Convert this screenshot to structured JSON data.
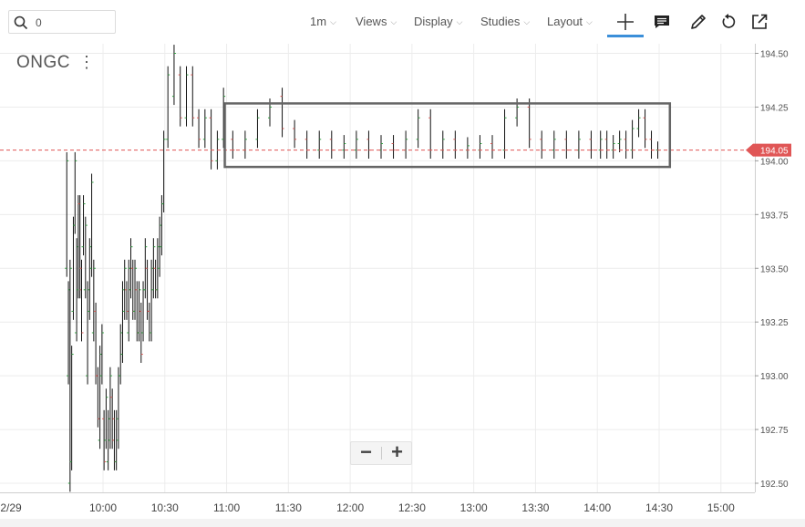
{
  "search": {
    "value": "0",
    "icon": "search-icon"
  },
  "toolbar": {
    "interval": "1m",
    "views": "Views",
    "display": "Display",
    "studies": "Studies",
    "layout": "Layout",
    "icons": [
      "crosshair-icon",
      "comment-icon",
      "pencil-icon",
      "undo-icon",
      "popout-icon"
    ]
  },
  "symbol": {
    "name": "ONGC",
    "menu": "⋮"
  },
  "zoom": {
    "out": "−",
    "in": "+"
  },
  "colors": {
    "up": "#2e9e3e",
    "down": "#d9534f",
    "bar": "#111111",
    "price_tag": "#e05656",
    "grid": "#ececec",
    "accent": "#3b8fd9"
  },
  "chart_data": {
    "type": "ohlc",
    "symbol": "ONGC",
    "x_ticks": [
      "2/29",
      "10:00",
      "10:30",
      "11:00",
      "11:30",
      "12:00",
      "12:30",
      "13:00",
      "13:30",
      "14:00",
      "14:30",
      "15:00"
    ],
    "y_ticks": [
      "194.50",
      "194.25",
      "194.00",
      "193.75",
      "193.50",
      "193.25",
      "193.00",
      "192.75",
      "192.50"
    ],
    "ylim": [
      192.48,
      194.55
    ],
    "last_price": "194.05",
    "grid": true,
    "annotation": {
      "type": "rectangle",
      "x_start": "11:00",
      "x_end": "14:33",
      "y_low": 193.98,
      "y_high": 194.25
    },
    "series": [
      {
        "x": "09:42",
        "segment": [
          [
            193.5,
            194.0
          ],
          [
            193.0,
            193.4
          ],
          [
            192.5,
            193.5
          ],
          [
            192.6,
            193.1
          ],
          [
            193.3,
            193.7
          ],
          [
            193.7,
            194.0
          ],
          [
            193.2,
            193.6
          ],
          [
            193.4,
            193.8
          ],
          [
            193.8,
            193.4
          ],
          [
            193.5,
            193.2
          ]
        ]
      },
      {
        "x": "09:50",
        "segment": [
          [
            193.6,
            193.8
          ],
          [
            193.4,
            193.7
          ],
          [
            193.0,
            193.4
          ],
          [
            193.3,
            193.6
          ],
          [
            193.5,
            193.9
          ],
          [
            193.2,
            193.5
          ],
          [
            193.3,
            193.0
          ],
          [
            193.0,
            192.8
          ],
          [
            192.7,
            193.1
          ],
          [
            193.0,
            193.2
          ]
        ]
      },
      {
        "x": "10:00",
        "segment": [
          [
            192.8,
            192.6
          ],
          [
            192.7,
            192.9
          ],
          [
            192.6,
            192.8
          ],
          [
            192.7,
            193.0
          ],
          [
            192.9,
            192.7
          ],
          [
            192.8,
            192.6
          ],
          [
            192.6,
            192.8
          ],
          [
            192.7,
            193.0
          ],
          [
            193.0,
            193.2
          ],
          [
            193.1,
            193.4
          ]
        ]
      },
      {
        "x": "10:10",
        "segment": [
          [
            193.3,
            193.5
          ],
          [
            193.4,
            193.3
          ],
          [
            193.2,
            193.5
          ],
          [
            193.4,
            193.6
          ],
          [
            193.5,
            193.3
          ],
          [
            193.3,
            193.5
          ],
          [
            193.4,
            193.2
          ],
          [
            193.2,
            193.4
          ],
          [
            193.3,
            193.1
          ],
          [
            193.2,
            193.4
          ]
        ]
      },
      {
        "x": "10:20",
        "segment": [
          [
            193.4,
            193.6
          ],
          [
            193.5,
            193.3
          ],
          [
            193.3,
            193.2
          ],
          [
            193.2,
            193.5
          ],
          [
            193.4,
            193.6
          ],
          [
            193.5,
            193.4
          ],
          [
            193.4,
            193.6
          ],
          [
            193.5,
            193.7
          ],
          [
            193.6,
            193.8
          ],
          [
            193.8,
            194.1
          ]
        ]
      },
      {
        "x": "10:30",
        "segment": [
          [
            194.1,
            194.4
          ],
          [
            194.3,
            194.5
          ],
          [
            194.4,
            194.2
          ],
          [
            194.2,
            194.4
          ],
          [
            194.4,
            194.2
          ],
          [
            194.2,
            194.1
          ],
          [
            194.1,
            194.2
          ],
          [
            194.2,
            194.0
          ],
          [
            194.0,
            194.1
          ],
          [
            194.1,
            194.3
          ]
        ]
      },
      {
        "x": "11:00",
        "segment": [
          [
            194.1,
            194.05
          ],
          [
            194.05,
            194.1
          ],
          [
            194.1,
            194.2
          ],
          [
            194.2,
            194.25
          ],
          [
            194.3,
            194.15
          ],
          [
            194.15,
            194.1
          ],
          [
            194.1,
            194.05
          ],
          [
            194.05,
            194.1
          ],
          [
            194.1,
            194.05
          ],
          [
            194.05,
            194.08
          ]
        ]
      },
      {
        "x": "12:00",
        "segment": [
          [
            194.05,
            194.1
          ],
          [
            194.1,
            194.05
          ],
          [
            194.05,
            194.08
          ],
          [
            194.08,
            194.05
          ],
          [
            194.05,
            194.1
          ],
          [
            194.1,
            194.2
          ],
          [
            194.2,
            194.05
          ],
          [
            194.05,
            194.1
          ],
          [
            194.1,
            194.05
          ],
          [
            194.05,
            194.07
          ]
        ]
      },
      {
        "x": "13:00",
        "segment": [
          [
            194.05,
            194.08
          ],
          [
            194.08,
            194.05
          ],
          [
            194.05,
            194.2
          ],
          [
            194.2,
            194.25
          ],
          [
            194.25,
            194.1
          ],
          [
            194.1,
            194.05
          ],
          [
            194.05,
            194.1
          ],
          [
            194.1,
            194.05
          ],
          [
            194.05,
            194.1
          ],
          [
            194.1,
            194.05
          ]
        ]
      },
      {
        "x": "14:00",
        "segment": [
          [
            194.05,
            194.1
          ],
          [
            194.1,
            194.05
          ],
          [
            194.05,
            194.08
          ],
          [
            194.08,
            194.1
          ],
          [
            194.1,
            194.05
          ],
          [
            194.05,
            194.15
          ],
          [
            194.15,
            194.2
          ],
          [
            194.2,
            194.1
          ],
          [
            194.1,
            194.05
          ],
          [
            194.05,
            194.05
          ]
        ]
      }
    ]
  }
}
